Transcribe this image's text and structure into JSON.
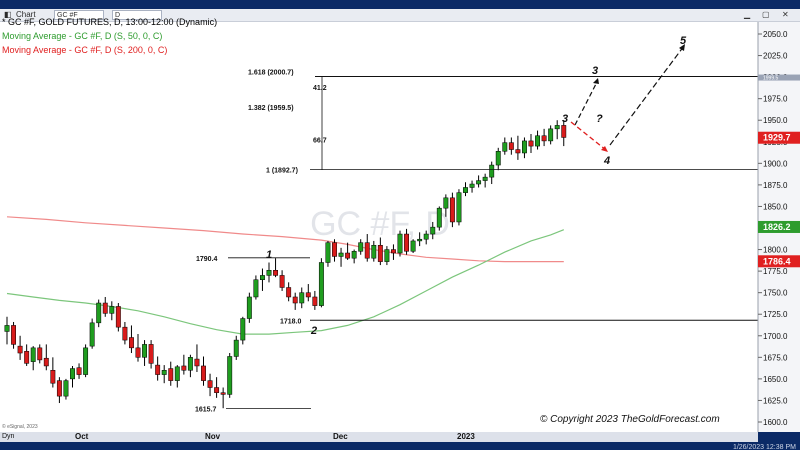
{
  "window": {
    "tab_label": "Chart",
    "symbol": "GC #F",
    "interval": "D",
    "timestamp": "1/26/2023 12:38 PM"
  },
  "legend": {
    "line1": "* GC #F, GOLD FUTURES, D, 13:00-12:00 (Dynamic)",
    "line2": "Moving Average - GC #F, D (S, 50, 0, C)",
    "line3": "Moving Average - GC #F, D (S, 200, 0, C)",
    "colors": {
      "line1": "#000000",
      "line2": "#2e9c2e",
      "line3": "#e02020"
    }
  },
  "watermark": "GC #F, D",
  "copyright": "© Copyright 2023 TheGoldForecast.com",
  "esignal": "© eSignal, 2023",
  "bottom": {
    "dyn": "Dyn"
  },
  "chart_data": {
    "type": "candlestick",
    "ylim": [
      1595,
      2060
    ],
    "y_ticks": [
      "2050.0",
      "2025.0",
      "2000.0",
      "1975.0",
      "1950.0",
      "1925.0",
      "1900.0",
      "1875.0",
      "1850.0",
      "1825.0",
      "1800.0",
      "1775.0",
      "1750.0",
      "1725.0",
      "1700.0",
      "1675.0",
      "1650.0",
      "1625.0",
      "1600.0"
    ],
    "x_labels": [
      "Oct",
      "Nov",
      "Dec",
      "2023"
    ],
    "price_tags": [
      {
        "label": "1929.7",
        "value": 1929.7,
        "color": "#e02020"
      },
      {
        "label": "1826.2",
        "value": 1826.2,
        "color": "#2e9c2e"
      },
      {
        "label": "1786.4",
        "value": 1786.4,
        "color": "#e02020"
      },
      {
        "label": "1999.5",
        "value": 1999.5,
        "color": "#9aa3b5"
      }
    ],
    "levels": [
      {
        "label": "1.618 (2000.7)",
        "value": 2000.7
      },
      {
        "label": "1.382 (1959.5)",
        "value": 1959.5
      },
      {
        "label": "1 (1892.7)",
        "value": 1892.7
      },
      {
        "label": "1790.4",
        "value": 1790.4
      },
      {
        "label": "1718.0",
        "value": 1718.0
      },
      {
        "label": "1615.7",
        "value": 1615.7
      }
    ],
    "measures": [
      "41.2",
      "66.7"
    ],
    "wave_labels": [
      "1",
      "2",
      "3",
      "3",
      "4",
      "5",
      "?"
    ],
    "candles": [
      {
        "o": 1705,
        "h": 1722,
        "l": 1690,
        "c": 1712
      },
      {
        "o": 1712,
        "h": 1716,
        "l": 1685,
        "c": 1690
      },
      {
        "o": 1688,
        "h": 1700,
        "l": 1672,
        "c": 1680
      },
      {
        "o": 1682,
        "h": 1690,
        "l": 1665,
        "c": 1668
      },
      {
        "o": 1670,
        "h": 1688,
        "l": 1660,
        "c": 1686
      },
      {
        "o": 1686,
        "h": 1690,
        "l": 1668,
        "c": 1672
      },
      {
        "o": 1674,
        "h": 1690,
        "l": 1660,
        "c": 1665
      },
      {
        "o": 1660,
        "h": 1675,
        "l": 1640,
        "c": 1645
      },
      {
        "o": 1648,
        "h": 1652,
        "l": 1622,
        "c": 1630
      },
      {
        "o": 1630,
        "h": 1650,
        "l": 1626,
        "c": 1648
      },
      {
        "o": 1650,
        "h": 1665,
        "l": 1640,
        "c": 1662
      },
      {
        "o": 1663,
        "h": 1668,
        "l": 1650,
        "c": 1655
      },
      {
        "o": 1655,
        "h": 1690,
        "l": 1652,
        "c": 1686
      },
      {
        "o": 1688,
        "h": 1720,
        "l": 1685,
        "c": 1715
      },
      {
        "o": 1715,
        "h": 1742,
        "l": 1710,
        "c": 1738
      },
      {
        "o": 1738,
        "h": 1745,
        "l": 1722,
        "c": 1726
      },
      {
        "o": 1726,
        "h": 1740,
        "l": 1718,
        "c": 1734
      },
      {
        "o": 1734,
        "h": 1738,
        "l": 1705,
        "c": 1710
      },
      {
        "o": 1710,
        "h": 1716,
        "l": 1690,
        "c": 1695
      },
      {
        "o": 1698,
        "h": 1712,
        "l": 1680,
        "c": 1686
      },
      {
        "o": 1686,
        "h": 1702,
        "l": 1670,
        "c": 1675
      },
      {
        "o": 1675,
        "h": 1695,
        "l": 1665,
        "c": 1690
      },
      {
        "o": 1690,
        "h": 1695,
        "l": 1662,
        "c": 1668
      },
      {
        "o": 1666,
        "h": 1676,
        "l": 1648,
        "c": 1655
      },
      {
        "o": 1655,
        "h": 1666,
        "l": 1645,
        "c": 1660
      },
      {
        "o": 1662,
        "h": 1670,
        "l": 1642,
        "c": 1648
      },
      {
        "o": 1648,
        "h": 1666,
        "l": 1640,
        "c": 1664
      },
      {
        "o": 1665,
        "h": 1678,
        "l": 1655,
        "c": 1660
      },
      {
        "o": 1660,
        "h": 1678,
        "l": 1652,
        "c": 1675
      },
      {
        "o": 1673,
        "h": 1690,
        "l": 1658,
        "c": 1665
      },
      {
        "o": 1665,
        "h": 1676,
        "l": 1642,
        "c": 1648
      },
      {
        "o": 1648,
        "h": 1656,
        "l": 1630,
        "c": 1640
      },
      {
        "o": 1640,
        "h": 1652,
        "l": 1628,
        "c": 1634
      },
      {
        "o": 1634,
        "h": 1640,
        "l": 1616,
        "c": 1632
      },
      {
        "o": 1632,
        "h": 1680,
        "l": 1628,
        "c": 1676
      },
      {
        "o": 1676,
        "h": 1700,
        "l": 1672,
        "c": 1695
      },
      {
        "o": 1695,
        "h": 1722,
        "l": 1690,
        "c": 1720
      },
      {
        "o": 1720,
        "h": 1750,
        "l": 1715,
        "c": 1745
      },
      {
        "o": 1745,
        "h": 1770,
        "l": 1742,
        "c": 1765
      },
      {
        "o": 1765,
        "h": 1778,
        "l": 1752,
        "c": 1770
      },
      {
        "o": 1770,
        "h": 1785,
        "l": 1762,
        "c": 1776
      },
      {
        "o": 1776,
        "h": 1790,
        "l": 1768,
        "c": 1770
      },
      {
        "o": 1770,
        "h": 1776,
        "l": 1752,
        "c": 1756
      },
      {
        "o": 1756,
        "h": 1762,
        "l": 1740,
        "c": 1745
      },
      {
        "o": 1745,
        "h": 1750,
        "l": 1730,
        "c": 1738
      },
      {
        "o": 1738,
        "h": 1756,
        "l": 1732,
        "c": 1750
      },
      {
        "o": 1750,
        "h": 1760,
        "l": 1740,
        "c": 1745
      },
      {
        "o": 1745,
        "h": 1752,
        "l": 1730,
        "c": 1735
      },
      {
        "o": 1735,
        "h": 1790,
        "l": 1733,
        "c": 1785
      },
      {
        "o": 1785,
        "h": 1810,
        "l": 1780,
        "c": 1808
      },
      {
        "o": 1808,
        "h": 1812,
        "l": 1786,
        "c": 1792
      },
      {
        "o": 1792,
        "h": 1802,
        "l": 1780,
        "c": 1796
      },
      {
        "o": 1796,
        "h": 1808,
        "l": 1788,
        "c": 1790
      },
      {
        "o": 1790,
        "h": 1800,
        "l": 1784,
        "c": 1798
      },
      {
        "o": 1798,
        "h": 1812,
        "l": 1794,
        "c": 1808
      },
      {
        "o": 1808,
        "h": 1818,
        "l": 1786,
        "c": 1790
      },
      {
        "o": 1790,
        "h": 1810,
        "l": 1786,
        "c": 1805
      },
      {
        "o": 1805,
        "h": 1814,
        "l": 1782,
        "c": 1786
      },
      {
        "o": 1786,
        "h": 1804,
        "l": 1782,
        "c": 1800
      },
      {
        "o": 1800,
        "h": 1806,
        "l": 1788,
        "c": 1796
      },
      {
        "o": 1796,
        "h": 1822,
        "l": 1792,
        "c": 1818
      },
      {
        "o": 1818,
        "h": 1824,
        "l": 1794,
        "c": 1798
      },
      {
        "o": 1798,
        "h": 1812,
        "l": 1796,
        "c": 1810
      },
      {
        "o": 1810,
        "h": 1820,
        "l": 1804,
        "c": 1812
      },
      {
        "o": 1812,
        "h": 1822,
        "l": 1806,
        "c": 1818
      },
      {
        "o": 1818,
        "h": 1832,
        "l": 1812,
        "c": 1826
      },
      {
        "o": 1826,
        "h": 1850,
        "l": 1822,
        "c": 1848
      },
      {
        "o": 1848,
        "h": 1864,
        "l": 1838,
        "c": 1860
      },
      {
        "o": 1860,
        "h": 1866,
        "l": 1826,
        "c": 1832
      },
      {
        "o": 1832,
        "h": 1870,
        "l": 1828,
        "c": 1866
      },
      {
        "o": 1866,
        "h": 1878,
        "l": 1862,
        "c": 1872
      },
      {
        "o": 1872,
        "h": 1880,
        "l": 1866,
        "c": 1876
      },
      {
        "o": 1876,
        "h": 1886,
        "l": 1872,
        "c": 1880
      },
      {
        "o": 1880,
        "h": 1888,
        "l": 1872,
        "c": 1884
      },
      {
        "o": 1884,
        "h": 1902,
        "l": 1876,
        "c": 1898
      },
      {
        "o": 1898,
        "h": 1918,
        "l": 1892,
        "c": 1914
      },
      {
        "o": 1914,
        "h": 1930,
        "l": 1910,
        "c": 1924
      },
      {
        "o": 1924,
        "h": 1930,
        "l": 1910,
        "c": 1916
      },
      {
        "o": 1916,
        "h": 1932,
        "l": 1904,
        "c": 1912
      },
      {
        "o": 1912,
        "h": 1930,
        "l": 1906,
        "c": 1926
      },
      {
        "o": 1926,
        "h": 1934,
        "l": 1912,
        "c": 1920
      },
      {
        "o": 1920,
        "h": 1938,
        "l": 1916,
        "c": 1932
      },
      {
        "o": 1932,
        "h": 1940,
        "l": 1920,
        "c": 1926
      },
      {
        "o": 1926,
        "h": 1944,
        "l": 1922,
        "c": 1940
      },
      {
        "o": 1940,
        "h": 1950,
        "l": 1928,
        "c": 1944
      },
      {
        "o": 1944,
        "h": 1950,
        "l": 1920,
        "c": 1930
      }
    ],
    "ma50": [
      [
        0,
        1749
      ],
      [
        4,
        1745
      ],
      [
        8,
        1741
      ],
      [
        12,
        1738
      ],
      [
        16,
        1734
      ],
      [
        20,
        1729
      ],
      [
        24,
        1722
      ],
      [
        28,
        1714
      ],
      [
        32,
        1707
      ],
      [
        36,
        1702
      ],
      [
        40,
        1702
      ],
      [
        44,
        1704
      ],
      [
        48,
        1706
      ],
      [
        52,
        1712
      ],
      [
        56,
        1722
      ],
      [
        60,
        1736
      ],
      [
        64,
        1752
      ],
      [
        68,
        1768
      ],
      [
        72,
        1782
      ],
      [
        76,
        1797
      ],
      [
        80,
        1810
      ],
      [
        83,
        1817
      ],
      [
        85,
        1823
      ]
    ],
    "ma200": [
      [
        0,
        1838
      ],
      [
        6,
        1835
      ],
      [
        12,
        1831
      ],
      [
        18,
        1828
      ],
      [
        24,
        1825
      ],
      [
        30,
        1822
      ],
      [
        36,
        1818
      ],
      [
        42,
        1815
      ],
      [
        48,
        1811
      ],
      [
        52,
        1806
      ],
      [
        56,
        1800
      ],
      [
        60,
        1795
      ],
      [
        64,
        1791
      ],
      [
        68,
        1789
      ],
      [
        72,
        1787
      ],
      [
        76,
        1786
      ],
      [
        80,
        1786
      ],
      [
        83,
        1786
      ],
      [
        85,
        1786
      ]
    ]
  }
}
